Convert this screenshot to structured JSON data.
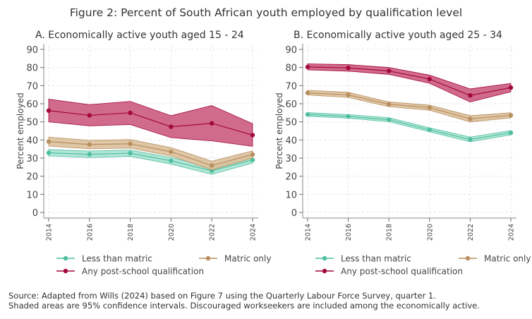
{
  "title": "Figure 2: Percent of South African youth employed by qualification level",
  "source_line1": "Source: Adapted from Wills (2024) based on Figure 7 using the Quarterly Labour Force Survey, quarter 1.",
  "source_line2": "Shaded areas are 95% confidence intervals. Discouraged workseekers are included among the economically active.",
  "colors": {
    "less": "#4fbf9f",
    "less_band": "#a9e3d1",
    "matric": "#b8905f",
    "matric_band": "#dcc09c",
    "post": "#a3093a",
    "post_band": "#cc5b7f"
  },
  "chart_data": [
    {
      "type": "line",
      "title": "A. Economically active youth aged 15 - 24",
      "ylabel": "Percent employed",
      "xlabel": "",
      "x": [
        2014,
        2016,
        2018,
        2020,
        2022,
        2024
      ],
      "xticks": [
        "2014",
        "2016",
        "2018",
        "2020",
        "2022",
        "2024"
      ],
      "ylim": [
        0,
        90
      ],
      "yticks": [
        "0",
        "10",
        "20",
        "30",
        "40",
        "50",
        "60",
        "70",
        "80",
        "90"
      ],
      "grid": true,
      "legend": "bottom",
      "series": [
        {
          "name": "Less than matric",
          "key": "less",
          "values": [
            32.9,
            32.1,
            32.7,
            28.5,
            23.0,
            29.0
          ],
          "lower": [
            31.2,
            30.3,
            31.0,
            26.7,
            21.0,
            27.3
          ],
          "upper": [
            34.7,
            33.9,
            34.4,
            30.3,
            24.9,
            30.8
          ]
        },
        {
          "name": "Matric only",
          "key": "matric",
          "values": [
            39.1,
            37.5,
            37.9,
            33.5,
            25.9,
            32.0
          ],
          "lower": [
            36.6,
            35.1,
            35.5,
            31.2,
            23.5,
            30.0
          ],
          "upper": [
            41.6,
            39.8,
            40.2,
            35.8,
            28.3,
            34.0
          ]
        },
        {
          "name": "Any post-school qualification",
          "key": "post",
          "values": [
            56.2,
            53.6,
            55.0,
            47.3,
            49.2,
            42.7
          ],
          "lower": [
            50.0,
            47.8,
            48.5,
            41.3,
            39.5,
            36.5
          ],
          "upper": [
            62.5,
            59.5,
            61.3,
            53.4,
            59.0,
            49.0
          ]
        }
      ]
    },
    {
      "type": "line",
      "title": "B. Economically active youth aged 25 - 34",
      "ylabel": "Percent employed",
      "xlabel": "",
      "x": [
        2014,
        2016,
        2018,
        2020,
        2022,
        2024
      ],
      "xticks": [
        "2014",
        "2016",
        "2018",
        "2020",
        "2022",
        "2024"
      ],
      "ylim": [
        0,
        90
      ],
      "yticks": [
        "0",
        "10",
        "20",
        "30",
        "40",
        "50",
        "60",
        "70",
        "80",
        "90"
      ],
      "grid": true,
      "legend": "bottom",
      "series": [
        {
          "name": "Less than matric",
          "key": "less",
          "values": [
            54.1,
            53.0,
            51.2,
            45.6,
            40.3,
            44.0
          ],
          "lower": [
            53.1,
            52.0,
            50.1,
            44.5,
            39.0,
            42.8
          ],
          "upper": [
            55.1,
            54.0,
            52.3,
            46.7,
            41.6,
            45.2
          ]
        },
        {
          "name": "Matric only",
          "key": "matric",
          "values": [
            66.0,
            64.9,
            59.7,
            57.8,
            51.7,
            53.6
          ],
          "lower": [
            64.8,
            63.5,
            58.4,
            56.4,
            50.0,
            52.2
          ],
          "upper": [
            67.4,
            66.3,
            61.0,
            59.2,
            53.4,
            55.0
          ]
        },
        {
          "name": "Any post-school qualification",
          "key": "post",
          "values": [
            80.3,
            79.8,
            78.1,
            73.6,
            64.6,
            68.9
          ],
          "lower": [
            78.7,
            78.0,
            76.2,
            71.3,
            61.0,
            66.6
          ],
          "upper": [
            82.0,
            81.6,
            80.0,
            75.8,
            68.2,
            71.2
          ]
        }
      ]
    }
  ]
}
